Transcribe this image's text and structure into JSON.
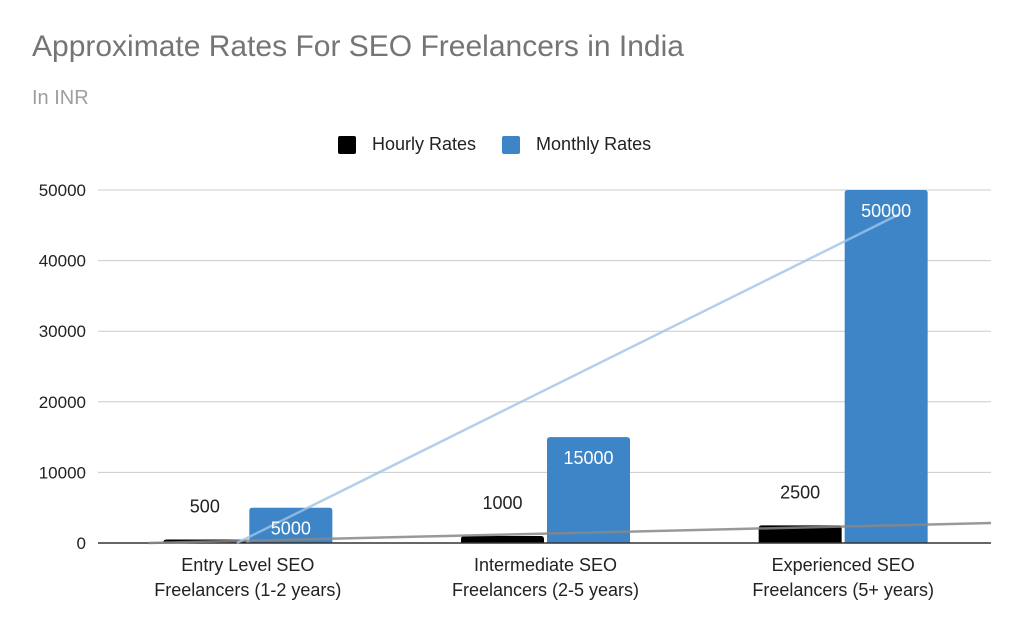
{
  "chart_data": {
    "type": "bar",
    "title": "Approximate Rates For SEO Freelancers in India",
    "subtitle": "In INR",
    "xlabel": "",
    "ylabel": "",
    "ylim": [
      0,
      50000
    ],
    "yticks": [
      "0",
      "10000",
      "20000",
      "30000",
      "40000",
      "50000"
    ],
    "categories": [
      [
        "Entry Level SEO",
        "Freelancers (1-2 years)"
      ],
      [
        "Intermediate SEO",
        "Freelancers (2-5 years)"
      ],
      [
        "Experienced SEO",
        "Freelancers (5+ years)"
      ]
    ],
    "series": [
      {
        "name": "Hourly Rates",
        "color": "#000000",
        "values": [
          500,
          1000,
          2500
        ],
        "labels": [
          "500",
          "1000",
          "2500"
        ]
      },
      {
        "name": "Monthly Rates",
        "color": "#3d85c6",
        "values": [
          5000,
          15000,
          50000
        ],
        "labels": [
          "5000",
          "15000",
          "50000"
        ]
      }
    ],
    "trendlines": [
      {
        "series": "Hourly Rates",
        "color": "#888888"
      },
      {
        "series": "Monthly Rates",
        "color": "#9fc5e8"
      }
    ],
    "grid": true,
    "legend_position": "top"
  }
}
